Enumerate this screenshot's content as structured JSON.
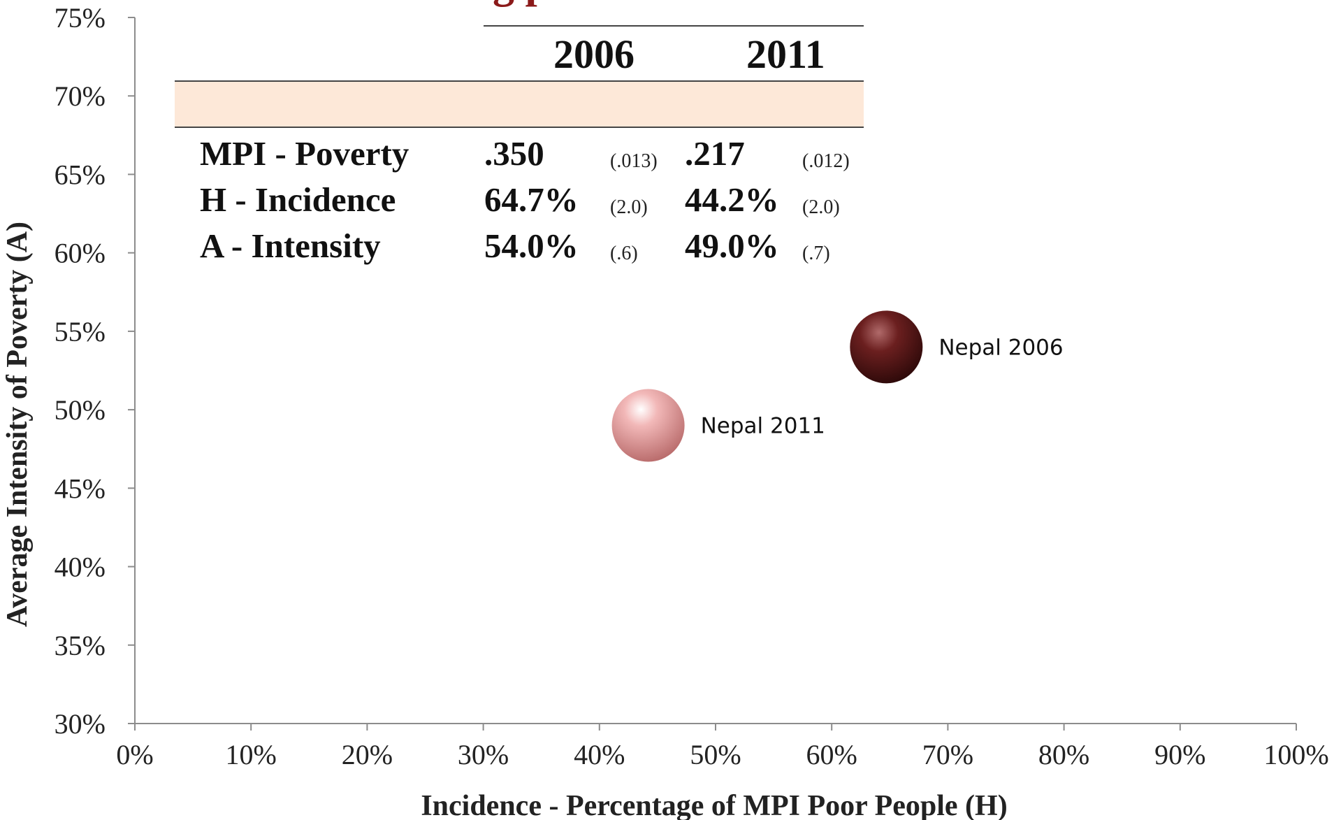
{
  "chart_data": {
    "type": "bubble",
    "title_fragment": "g p",
    "xlabel": "Incidence - Percentage of  MPI Poor People (H)",
    "ylabel": "Average Intensity of  Poverty (A)",
    "xlim": [
      0,
      100
    ],
    "ylim": [
      30,
      75
    ],
    "x_ticks": [
      "0%",
      "10%",
      "20%",
      "30%",
      "40%",
      "50%",
      "60%",
      "70%",
      "80%",
      "90%",
      "100%"
    ],
    "y_ticks": [
      "30%",
      "35%",
      "40%",
      "45%",
      "50%",
      "55%",
      "60%",
      "65%",
      "70%",
      "75%"
    ],
    "grid": false,
    "points": [
      {
        "label": "Nepal 2006",
        "x": 64.7,
        "y": 54.0,
        "color": "#6b1f1f"
      },
      {
        "label": "Nepal 2011",
        "x": 44.2,
        "y": 49.0,
        "color": "#e8a0a0"
      }
    ]
  },
  "table": {
    "years": [
      "2006",
      "2011"
    ],
    "rows": [
      {
        "label": "MPI - Poverty",
        "v2006": ".350",
        "se2006": "(.013)",
        "v2011": ".217",
        "se2011": "(.012)"
      },
      {
        "label": "H - Incidence",
        "v2006": "64.7%",
        "se2006": "(2.0)",
        "v2011": "44.2%",
        "se2011": "(2.0)"
      },
      {
        "label": "A - Intensity",
        "v2006": "54.0%",
        "se2006": "(.6)",
        "v2011": "49.0%",
        "se2011": "(.7)"
      }
    ]
  }
}
